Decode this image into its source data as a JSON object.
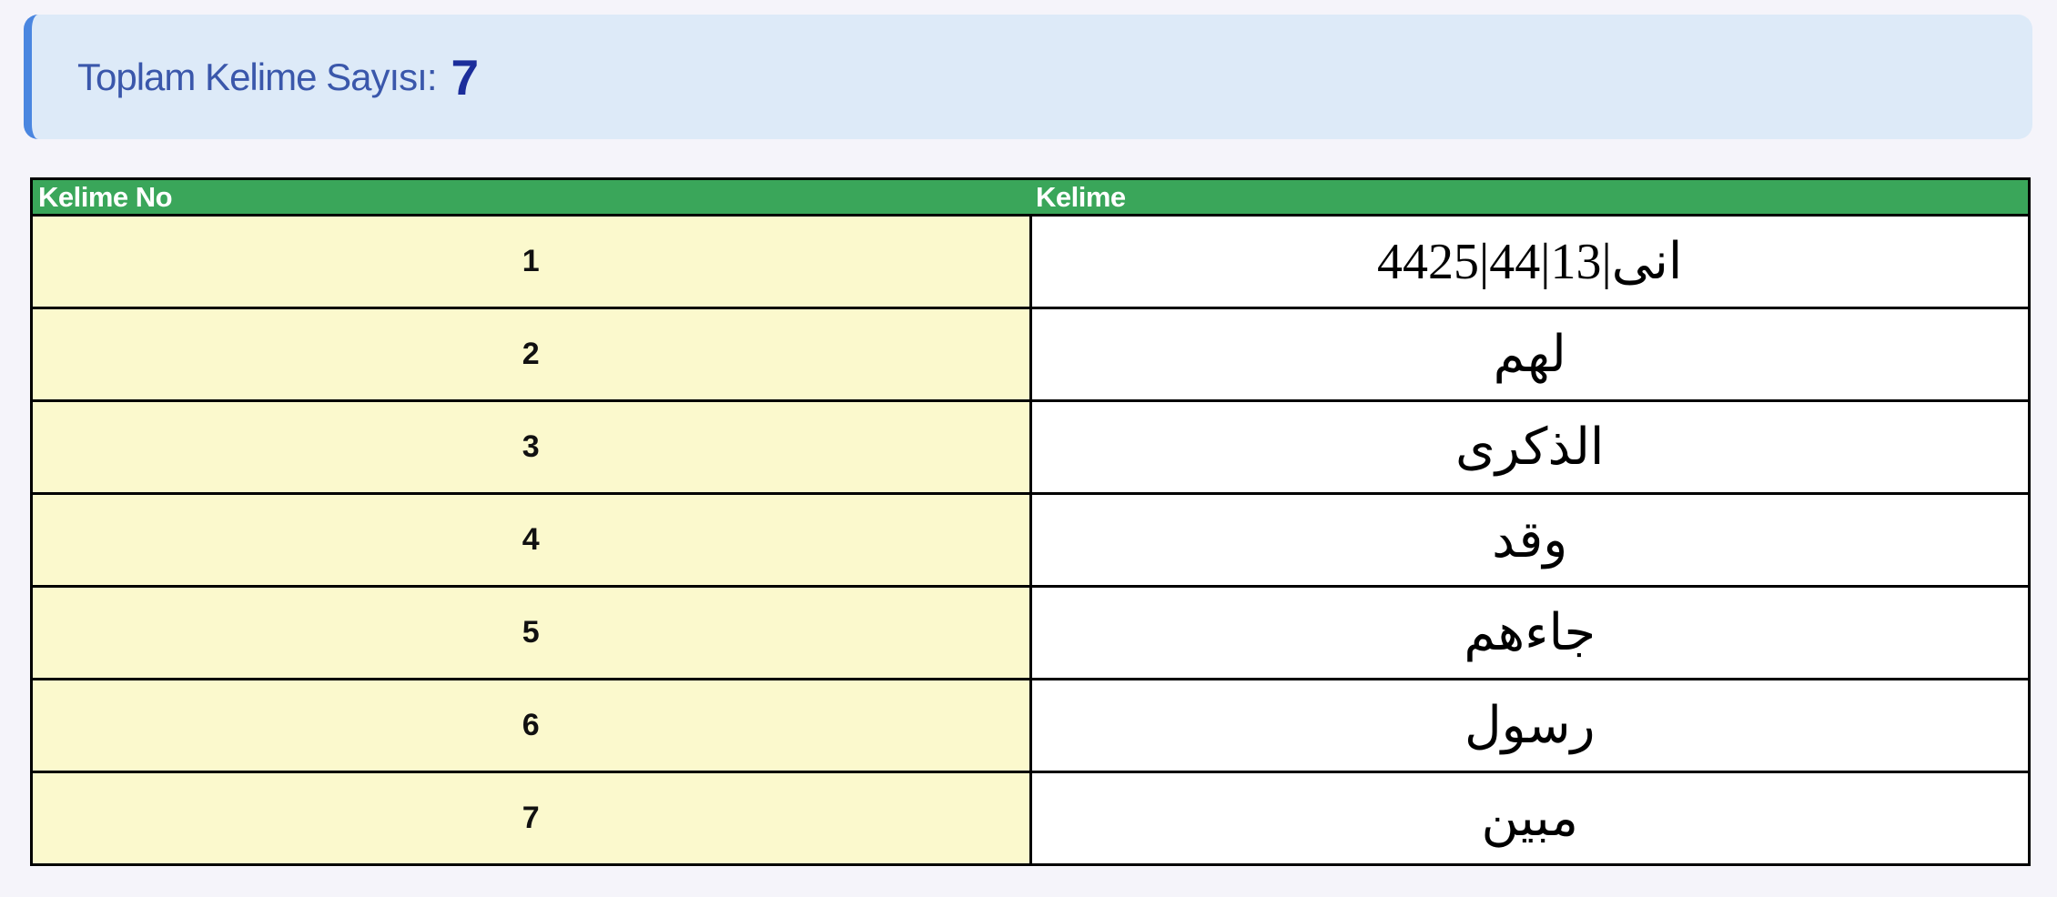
{
  "page": {
    "background_color": "#f5f4fa"
  },
  "summary_box": {
    "label": "Toplam Kelime Sayısı:",
    "value": "7",
    "background_color": "#ddeaf8",
    "accent_border_color": "#4a86e0",
    "label_color": "#3a57ab",
    "value_color": "#1b2d9b"
  },
  "table": {
    "header": {
      "col_no_label": "Kelime No",
      "col_word_label": "Kelime",
      "background_color": "#3aa65a",
      "text_color": "#ffffff"
    },
    "number_cell_color": "#fbf9cd",
    "border_color": "#000000",
    "rows": [
      {
        "no": "1",
        "kelime": "انى|13|44|4425"
      },
      {
        "no": "2",
        "kelime": "لهم"
      },
      {
        "no": "3",
        "kelime": "الذكرى"
      },
      {
        "no": "4",
        "kelime": "وقد"
      },
      {
        "no": "5",
        "kelime": "جاءهم"
      },
      {
        "no": "6",
        "kelime": "رسول"
      },
      {
        "no": "7",
        "kelime": "مبين"
      }
    ]
  }
}
